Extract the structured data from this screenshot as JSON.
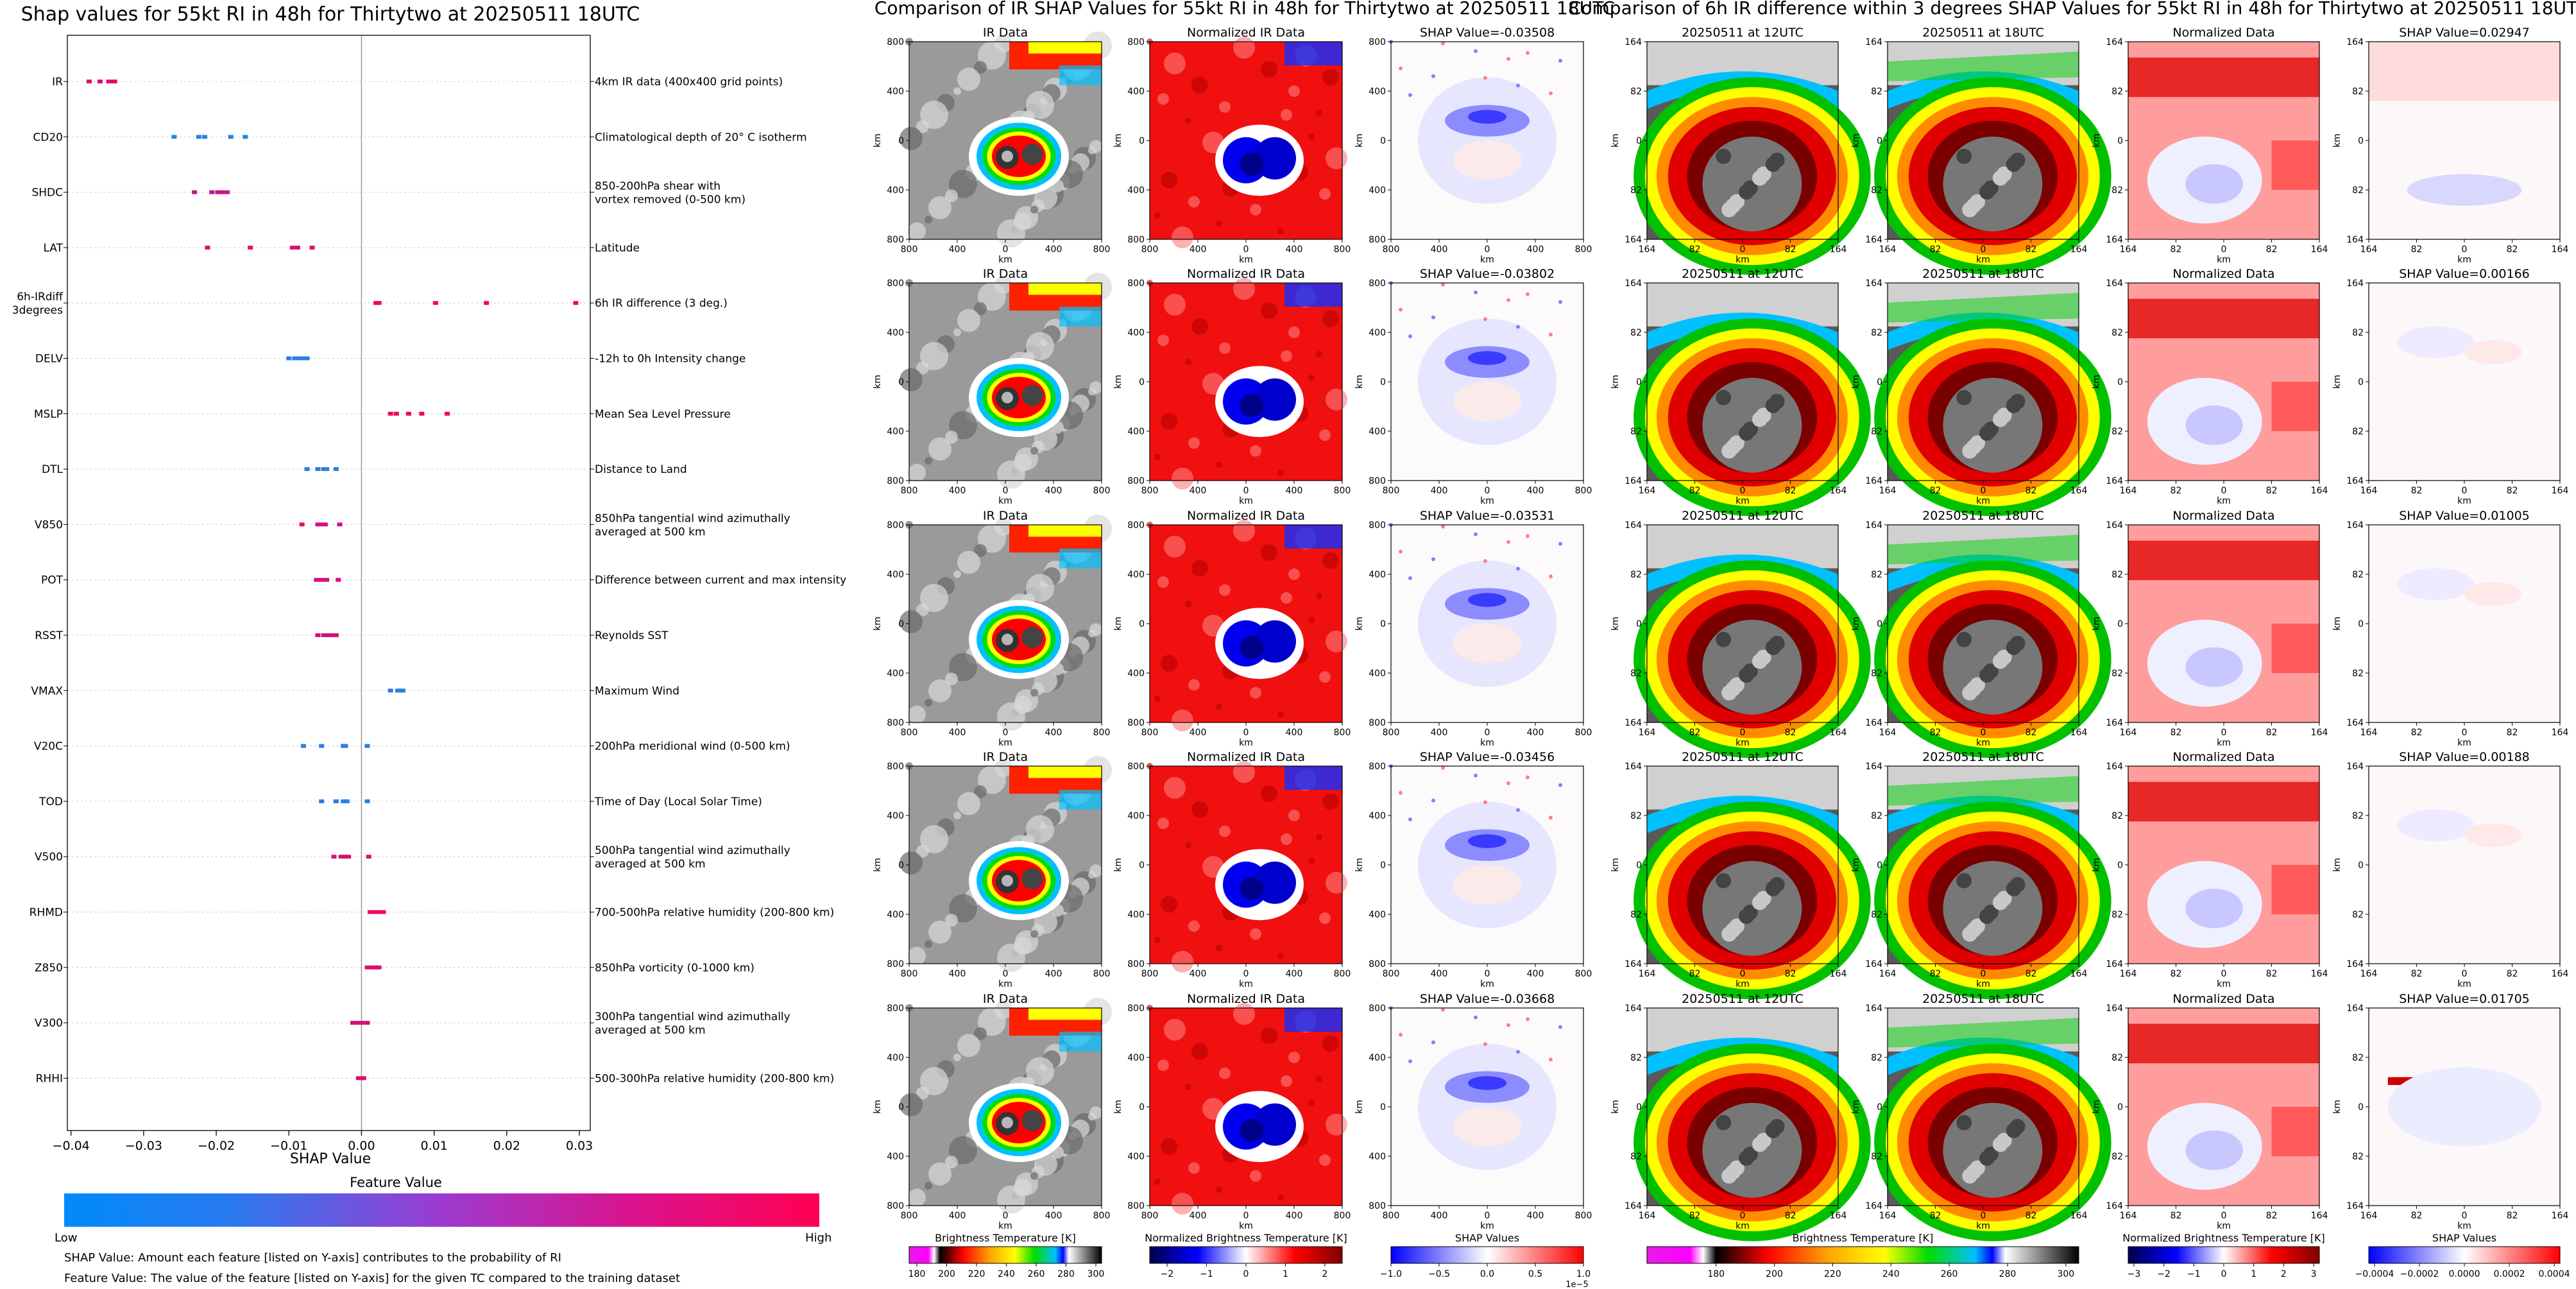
{
  "beeswarm": {
    "title": "Shap values for 55kt RI in 48h for Thirtytwo at 20250511 18UTC",
    "xlabel": "SHAP Value",
    "xticks": [
      -0.04,
      -0.03,
      -0.02,
      -0.01,
      0.0,
      0.01,
      0.02,
      0.03
    ],
    "xtick_labels": [
      "−0.04",
      "−0.03",
      "−0.02",
      "−0.01",
      "0.00",
      "0.01",
      "0.02",
      "0.03"
    ],
    "colorbar_title": "Feature Value",
    "colorbar_low": "Low",
    "colorbar_high": "High",
    "note1": "SHAP Value: Amount each feature [listed on Y-axis] contributes to the probability of RI",
    "note2": "Feature Value: The value of the feature [listed on Y-axis] for the given TC compared to the training dataset",
    "colors": {
      "low": "#1e88e5",
      "mid": "#9c27b0",
      "high": "#ff0052"
    }
  },
  "chart_data": {
    "type": "scatter",
    "title": "Shap values for 55kt RI in 48h for Thirtytwo at 20250511 18UTC",
    "xlabel": "SHAP Value",
    "xlim": [
      -0.0405,
      0.0315
    ],
    "features": [
      {
        "name": "IR",
        "description": "4km IR data (400x400 grid points)",
        "points": [
          [
            -0.0375,
            0.85
          ],
          [
            -0.036,
            0.8
          ],
          [
            -0.0348,
            0.9
          ],
          [
            -0.0343,
            0.88
          ],
          [
            -0.034,
            0.9
          ]
        ]
      },
      {
        "name": "CD20",
        "description": "Climatological depth of 20° C isotherm",
        "points": [
          [
            -0.0258,
            0.0
          ],
          [
            -0.0224,
            0.05
          ],
          [
            -0.0216,
            0.0
          ],
          [
            -0.018,
            0.05
          ],
          [
            -0.016,
            0.0
          ]
        ]
      },
      {
        "name": "SHDC",
        "description": "850-200hPa shear with\nvortex removed (0-500 km)",
        "points": [
          [
            -0.023,
            0.7
          ],
          [
            -0.0206,
            0.65
          ],
          [
            -0.0198,
            0.7
          ],
          [
            -0.0192,
            0.72
          ],
          [
            -0.0185,
            0.7
          ]
        ]
      },
      {
        "name": "LAT",
        "description": "Latitude",
        "points": [
          [
            -0.0212,
            0.8
          ],
          [
            -0.0153,
            0.85
          ],
          [
            -0.0095,
            0.9
          ],
          [
            -0.0088,
            0.8
          ],
          [
            -0.0068,
            0.85
          ]
        ]
      },
      {
        "name": "6h-IRdiff\n3degrees",
        "description": "6h IR difference (3 deg.)",
        "points": [
          [
            0.002,
            0.95
          ],
          [
            0.0024,
            0.95
          ],
          [
            0.0102,
            0.95
          ],
          [
            0.0172,
            0.95
          ],
          [
            0.0295,
            0.95
          ]
        ]
      },
      {
        "name": "DELV",
        "description": "-12h to 0h Intensity change",
        "points": [
          [
            -0.01,
            0.05
          ],
          [
            -0.0092,
            0.05
          ],
          [
            -0.0086,
            0.05
          ],
          [
            -0.008,
            0.05
          ],
          [
            -0.0075,
            0.05
          ]
        ]
      },
      {
        "name": "MSLP",
        "description": "Mean Sea Level Pressure",
        "points": [
          [
            0.004,
            0.92
          ],
          [
            0.0048,
            0.92
          ],
          [
            0.0065,
            0.92
          ],
          [
            0.0083,
            0.92
          ],
          [
            0.0118,
            0.92
          ]
        ]
      },
      {
        "name": "DTL",
        "description": "Distance to Land",
        "points": [
          [
            -0.0075,
            0.05
          ],
          [
            -0.006,
            0.05
          ],
          [
            -0.0052,
            0.05
          ],
          [
            -0.0048,
            0.05
          ],
          [
            -0.0035,
            0.05
          ]
        ]
      },
      {
        "name": "V850",
        "description": "850hPa tangential wind azimuthally\naveraged at 500 km",
        "points": [
          [
            -0.0082,
            0.85
          ],
          [
            -0.006,
            0.8
          ],
          [
            -0.0055,
            0.75
          ],
          [
            -0.005,
            0.8
          ],
          [
            -0.003,
            0.8
          ]
        ]
      },
      {
        "name": "POT",
        "description": "Difference between current and max intensity",
        "points": [
          [
            -0.0062,
            0.75
          ],
          [
            -0.0057,
            0.8
          ],
          [
            -0.0052,
            0.8
          ],
          [
            -0.0048,
            0.75
          ],
          [
            -0.0032,
            0.8
          ]
        ]
      },
      {
        "name": "RSST",
        "description": "Reynolds SST",
        "points": [
          [
            -0.006,
            0.8
          ],
          [
            -0.0052,
            0.75
          ],
          [
            -0.0045,
            0.8
          ],
          [
            -0.004,
            0.8
          ],
          [
            -0.0035,
            0.8
          ]
        ]
      },
      {
        "name": "VMAX",
        "description": "Maximum Wind",
        "points": [
          [
            0.004,
            0.05
          ],
          [
            0.005,
            0.05
          ],
          [
            0.0054,
            0.05
          ],
          [
            0.0057,
            0.05
          ]
        ]
      },
      {
        "name": "V20C",
        "description": "200hPa meridional wind (0-500 km)",
        "points": [
          [
            -0.008,
            0.05
          ],
          [
            -0.0055,
            0.05
          ],
          [
            -0.0025,
            0.05
          ],
          [
            -0.0022,
            0.05
          ],
          [
            0.0008,
            0.05
          ]
        ]
      },
      {
        "name": "TOD",
        "description": "Time of Day (Local Solar Time)",
        "points": [
          [
            -0.0055,
            0.05
          ],
          [
            -0.0035,
            0.05
          ],
          [
            -0.0025,
            0.05
          ],
          [
            -0.002,
            0.05
          ],
          [
            0.0008,
            0.05
          ]
        ]
      },
      {
        "name": "V500",
        "description": "500hPa tangential wind azimuthally\naveraged at 500 km",
        "points": [
          [
            -0.0038,
            0.8
          ],
          [
            -0.0028,
            0.85
          ],
          [
            -0.0022,
            0.8
          ],
          [
            -0.0018,
            0.8
          ],
          [
            0.001,
            0.85
          ]
        ]
      },
      {
        "name": "RHMD",
        "description": "700-500hPa relative humidity (200-800 km)",
        "points": [
          [
            0.0012,
            0.9
          ],
          [
            0.0018,
            0.9
          ],
          [
            0.0022,
            0.9
          ],
          [
            0.0026,
            0.9
          ],
          [
            0.003,
            0.9
          ]
        ]
      },
      {
        "name": "Z850",
        "description": "850hPa vorticity (0-1000 km)",
        "points": [
          [
            0.0008,
            0.85
          ],
          [
            0.0014,
            0.85
          ],
          [
            0.0018,
            0.85
          ],
          [
            0.002,
            0.85
          ],
          [
            0.0024,
            0.85
          ]
        ]
      },
      {
        "name": "V300",
        "description": "300hPa tangential wind azimuthally\naveraged at 500 km",
        "points": [
          [
            -0.0012,
            0.8
          ],
          [
            -0.0006,
            0.8
          ],
          [
            -0.0002,
            0.8
          ],
          [
            0.0002,
            0.8
          ],
          [
            0.0008,
            0.8
          ]
        ]
      },
      {
        "name": "RHHI",
        "description": "500-300hPa relative humidity (200-800 km)",
        "points": [
          [
            -0.0004,
            0.85
          ],
          [
            -0.0001,
            0.85
          ],
          [
            0.0001,
            0.85
          ],
          [
            0.0003,
            0.85
          ]
        ]
      }
    ]
  },
  "grid1": {
    "title": "Comparison of IR SHAP Values for 55kt RI in 48h for Thirtytwo at 20250511 18UTC",
    "col_titles": [
      "IR Data",
      "Normalized IR Data"
    ],
    "shap_titles": [
      "SHAP Value=-0.03508",
      "SHAP Value=-0.03802",
      "SHAP Value=-0.03531",
      "SHAP Value=-0.03456",
      "SHAP Value=-0.03668"
    ],
    "ticks": [
      "800",
      "400",
      "0",
      "400",
      "800"
    ],
    "axis_label": "km",
    "cb_labels": [
      "Brightness Temperature [K]",
      "Normalized Brightness Temperature [K]",
      "SHAP Values"
    ],
    "cb_ticks": [
      [
        "180",
        "200",
        "220",
        "240",
        "260",
        "280",
        "300"
      ],
      [
        "−2",
        "−1",
        "0",
        "1",
        "2"
      ],
      [
        "−1.0",
        "−0.5",
        "0.0",
        "0.5",
        "1.0"
      ]
    ],
    "cb_exponent": "1e−5"
  },
  "grid2": {
    "title": "Comparison of 6h IR difference within 3 degrees SHAP Values for 55kt RI in 48h for Thirtytwo at 20250511 18UTC",
    "col_titles": [
      "20250511 at 12UTC",
      "20250511 at 18UTC",
      "Normalized Data"
    ],
    "shap_titles": [
      "SHAP Value=0.02947",
      "SHAP Value=0.00166",
      "SHAP Value=0.01005",
      "SHAP Value=0.00188",
      "SHAP Value=0.01705"
    ],
    "ticks": [
      "164",
      "82",
      "0",
      "82",
      "164"
    ],
    "axis_label": "km",
    "cb_labels": [
      "Brightness Temperature [K]",
      "Normalized Brightness Temperature [K]",
      "SHAP Values"
    ],
    "cb_ticks": [
      [
        "180",
        "200",
        "220",
        "240",
        "260",
        "280",
        "300"
      ],
      [
        "−3",
        "−2",
        "−1",
        "0",
        "1",
        "2",
        "3"
      ],
      [
        "−0.0004",
        "−0.0002",
        "0.0000",
        "0.0002",
        "0.0004"
      ]
    ]
  }
}
